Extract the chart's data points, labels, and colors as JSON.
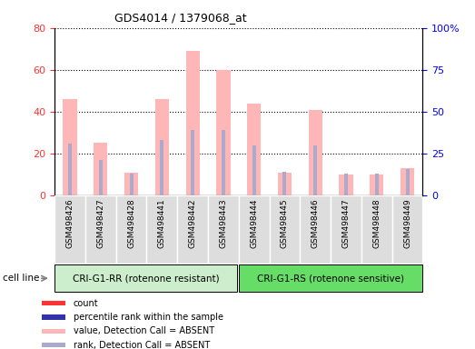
{
  "title": "GDS4014 / 1379068_at",
  "samples": [
    "GSM498426",
    "GSM498427",
    "GSM498428",
    "GSM498441",
    "GSM498442",
    "GSM498443",
    "GSM498444",
    "GSM498445",
    "GSM498446",
    "GSM498447",
    "GSM498448",
    "GSM498449"
  ],
  "group1_count": 6,
  "group2_count": 6,
  "group1_label": "CRI-G1-RR (rotenone resistant)",
  "group2_label": "CRI-G1-RS (rotenone sensitive)",
  "cell_line_label": "cell line",
  "value_absent": [
    46,
    25,
    11,
    46,
    69,
    60,
    44,
    11,
    41,
    10,
    10,
    13
  ],
  "rank_absent": [
    31,
    21,
    13,
    33,
    39,
    39,
    30,
    14,
    30,
    13,
    13,
    16
  ],
  "left_ylim": [
    0,
    80
  ],
  "right_ylim": [
    0,
    100
  ],
  "left_yticks": [
    0,
    20,
    40,
    60,
    80
  ],
  "right_yticks": [
    0,
    25,
    50,
    75,
    100
  ],
  "right_yticklabels": [
    "0",
    "25",
    "50",
    "75",
    "100%"
  ],
  "value_absent_color": "#FFB6B6",
  "rank_absent_color": "#AAAACC",
  "value_present_color": "#FF3333",
  "rank_present_color": "#3333AA",
  "group1_bg_color": "#CCEECC",
  "group2_bg_color": "#66DD66",
  "tick_bg_color": "#DDDDDD",
  "legend_items": [
    {
      "color": "#FF3333",
      "label": "count"
    },
    {
      "color": "#3333AA",
      "label": "percentile rank within the sample"
    },
    {
      "color": "#FFB6B6",
      "label": "value, Detection Call = ABSENT"
    },
    {
      "color": "#AAAACC",
      "label": "rank, Detection Call = ABSENT"
    }
  ]
}
